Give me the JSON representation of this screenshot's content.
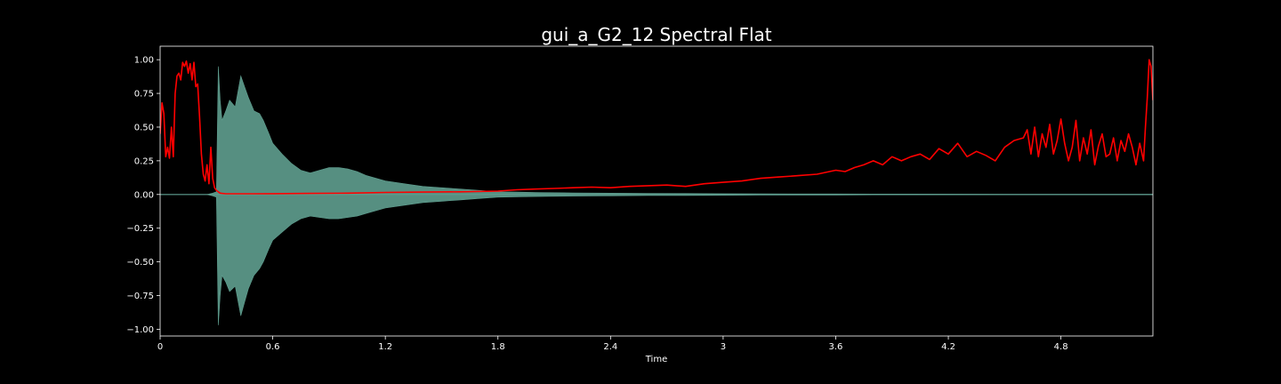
{
  "chart_data": {
    "type": "line",
    "title": "gui_a_G2_12 Spectral Flat",
    "xlabel": "Time",
    "ylabel": "",
    "xlim": [
      0,
      5.29
    ],
    "ylim": [
      -1.05,
      1.1
    ],
    "x_ticks": [
      0,
      0.6,
      1.2,
      1.8,
      2.4,
      3,
      3.6,
      4.2,
      4.8
    ],
    "x_tick_labels": [
      "0",
      "0.6",
      "1.2",
      "1.8",
      "2.4",
      "3",
      "3.6",
      "4.2",
      "4.8"
    ],
    "y_ticks": [
      1.0,
      0.75,
      0.5,
      0.25,
      0.0,
      -0.25,
      -0.5,
      -0.75,
      -1.0
    ],
    "y_tick_labels": [
      "1.00",
      "0.75",
      "0.50",
      "0.25",
      "0.00",
      "−0.25",
      "−0.50",
      "−0.75",
      "−1.00"
    ],
    "grid": false,
    "background_color": "#000000",
    "axis_color": "#ffffff",
    "series": [
      {
        "kind": "waveform-envelope",
        "color": "#5f9e8f",
        "x": [
          0,
          0.25,
          0.28,
          0.3,
          0.31,
          0.32,
          0.33,
          0.35,
          0.37,
          0.4,
          0.43,
          0.45,
          0.47,
          0.5,
          0.53,
          0.55,
          0.58,
          0.6,
          0.65,
          0.7,
          0.75,
          0.8,
          0.85,
          0.9,
          0.95,
          1.0,
          1.05,
          1.1,
          1.15,
          1.2,
          1.3,
          1.4,
          1.5,
          1.6,
          1.7,
          1.8,
          1.9,
          2.0,
          2.2,
          2.4,
          2.6,
          2.8,
          3.0,
          3.2,
          3.4,
          3.6,
          3.8,
          4.0,
          4.5,
          5.0,
          5.29
        ],
        "upper": [
          0,
          0,
          0.01,
          0.02,
          0.95,
          0.7,
          0.55,
          0.62,
          0.7,
          0.65,
          0.88,
          0.8,
          0.72,
          0.62,
          0.6,
          0.55,
          0.45,
          0.38,
          0.3,
          0.23,
          0.18,
          0.16,
          0.18,
          0.2,
          0.2,
          0.19,
          0.17,
          0.14,
          0.12,
          0.1,
          0.08,
          0.06,
          0.05,
          0.04,
          0.03,
          0.02,
          0.018,
          0.015,
          0.012,
          0.01,
          0.008,
          0.007,
          0.006,
          0.005,
          0.004,
          0.004,
          0.003,
          0.003,
          0.002,
          0.002,
          0.002
        ],
        "lower": [
          0,
          0,
          -0.01,
          -0.02,
          -0.97,
          -0.75,
          -0.6,
          -0.65,
          -0.72,
          -0.68,
          -0.9,
          -0.8,
          -0.7,
          -0.6,
          -0.55,
          -0.5,
          -0.4,
          -0.34,
          -0.28,
          -0.22,
          -0.18,
          -0.16,
          -0.17,
          -0.18,
          -0.18,
          -0.17,
          -0.16,
          -0.14,
          -0.12,
          -0.1,
          -0.08,
          -0.06,
          -0.05,
          -0.04,
          -0.03,
          -0.02,
          -0.018,
          -0.015,
          -0.012,
          -0.01,
          -0.008,
          -0.007,
          -0.006,
          -0.005,
          -0.004,
          -0.004,
          -0.003,
          -0.003,
          -0.002,
          -0.002,
          -0.002
        ]
      },
      {
        "kind": "line",
        "color": "#ff0000",
        "x": [
          0,
          0.01,
          0.02,
          0.03,
          0.04,
          0.05,
          0.06,
          0.07,
          0.08,
          0.09,
          0.1,
          0.11,
          0.12,
          0.13,
          0.14,
          0.15,
          0.16,
          0.17,
          0.18,
          0.19,
          0.2,
          0.21,
          0.22,
          0.23,
          0.24,
          0.25,
          0.26,
          0.27,
          0.28,
          0.29,
          0.3,
          0.31,
          0.32,
          0.33,
          0.35,
          0.4,
          0.5,
          0.6,
          0.8,
          1.0,
          1.2,
          1.4,
          1.6,
          1.8,
          1.9,
          2.0,
          2.1,
          2.2,
          2.3,
          2.4,
          2.5,
          2.6,
          2.7,
          2.8,
          2.9,
          3.0,
          3.1,
          3.2,
          3.3,
          3.4,
          3.5,
          3.6,
          3.65,
          3.7,
          3.75,
          3.8,
          3.85,
          3.9,
          3.95,
          4.0,
          4.05,
          4.1,
          4.15,
          4.2,
          4.25,
          4.3,
          4.35,
          4.4,
          4.45,
          4.5,
          4.55,
          4.6,
          4.62,
          4.64,
          4.66,
          4.68,
          4.7,
          4.72,
          4.74,
          4.76,
          4.78,
          4.8,
          4.82,
          4.84,
          4.86,
          4.88,
          4.9,
          4.92,
          4.94,
          4.96,
          4.98,
          5.0,
          5.02,
          5.04,
          5.06,
          5.08,
          5.1,
          5.12,
          5.14,
          5.16,
          5.18,
          5.2,
          5.22,
          5.24,
          5.25,
          5.26,
          5.27,
          5.28,
          5.29
        ],
        "y": [
          0.45,
          0.68,
          0.6,
          0.28,
          0.35,
          0.27,
          0.5,
          0.28,
          0.75,
          0.88,
          0.9,
          0.85,
          0.98,
          0.95,
          0.99,
          0.9,
          0.97,
          0.85,
          0.98,
          0.8,
          0.82,
          0.58,
          0.3,
          0.15,
          0.1,
          0.22,
          0.08,
          0.35,
          0.12,
          0.05,
          0.03,
          0.02,
          0.01,
          0.008,
          0.005,
          0.005,
          0.005,
          0.006,
          0.008,
          0.01,
          0.015,
          0.018,
          0.02,
          0.025,
          0.035,
          0.04,
          0.045,
          0.05,
          0.055,
          0.05,
          0.06,
          0.065,
          0.07,
          0.06,
          0.08,
          0.09,
          0.1,
          0.12,
          0.13,
          0.14,
          0.15,
          0.18,
          0.17,
          0.2,
          0.22,
          0.25,
          0.22,
          0.28,
          0.25,
          0.28,
          0.3,
          0.26,
          0.34,
          0.3,
          0.38,
          0.28,
          0.32,
          0.29,
          0.25,
          0.35,
          0.4,
          0.42,
          0.48,
          0.3,
          0.5,
          0.28,
          0.45,
          0.35,
          0.52,
          0.3,
          0.4,
          0.56,
          0.38,
          0.25,
          0.35,
          0.55,
          0.25,
          0.42,
          0.3,
          0.48,
          0.22,
          0.36,
          0.45,
          0.28,
          0.3,
          0.42,
          0.25,
          0.4,
          0.32,
          0.45,
          0.35,
          0.22,
          0.38,
          0.25,
          0.5,
          0.72,
          1.0,
          0.95,
          0.7
        ]
      }
    ]
  }
}
